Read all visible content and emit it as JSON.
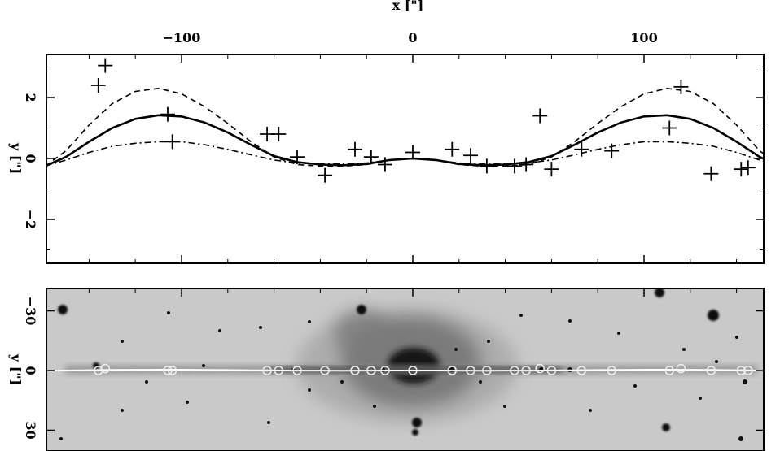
{
  "chart_data": [
    {
      "type": "line",
      "panel": "upper",
      "title": "",
      "xlabel": "x [\"]",
      "ylabel": "y [\"]",
      "x_label_position": "top",
      "xlim": [
        -150,
        150
      ],
      "ylim": [
        -3.5,
        3.5
      ],
      "x_ticks": [
        -100,
        0,
        100
      ],
      "x_tick_labels": [
        "−100",
        "0",
        "100"
      ],
      "y_ticks": [
        -2,
        0,
        2
      ],
      "y_tick_labels": [
        "−2",
        "0",
        "2"
      ],
      "grid": false,
      "legend": "none",
      "series": [
        {
          "style": "solid",
          "x": [
            -159,
            -150,
            -140,
            -130,
            -120,
            -110,
            -100,
            -90,
            -80,
            -70,
            -60,
            -50,
            -40,
            -30,
            -20,
            -10,
            0,
            10,
            20,
            30,
            40,
            50,
            60,
            70,
            80,
            90,
            100,
            110,
            120,
            130,
            140,
            150,
            159
          ],
          "y": [
            -0.25,
            0.05,
            0.55,
            1.0,
            1.3,
            1.42,
            1.38,
            1.18,
            0.85,
            0.45,
            0.08,
            -0.12,
            -0.2,
            -0.22,
            -0.18,
            -0.05,
            0.0,
            -0.05,
            -0.18,
            -0.22,
            -0.2,
            -0.12,
            0.08,
            0.45,
            0.85,
            1.18,
            1.38,
            1.42,
            1.3,
            1.0,
            0.55,
            0.05,
            -0.25
          ]
        },
        {
          "style": "dashed",
          "x": [
            -159,
            -150,
            -140,
            -130,
            -120,
            -110,
            -100,
            -90,
            -80,
            -70,
            -60,
            -50,
            -40,
            -30,
            -20,
            -10,
            0,
            10,
            20,
            30,
            40,
            50,
            60,
            70,
            80,
            90,
            100,
            110,
            120,
            130,
            140,
            150,
            159
          ],
          "y": [
            -0.25,
            0.25,
            1.1,
            1.8,
            2.2,
            2.3,
            2.12,
            1.7,
            1.15,
            0.55,
            0.05,
            -0.2,
            -0.25,
            -0.25,
            -0.2,
            -0.05,
            0.0,
            -0.05,
            -0.2,
            -0.25,
            -0.25,
            -0.2,
            0.05,
            0.55,
            1.15,
            1.7,
            2.12,
            2.3,
            2.2,
            1.8,
            1.1,
            0.25,
            -0.25
          ]
        },
        {
          "style": "dash-dot",
          "x": [
            -159,
            -150,
            -140,
            -130,
            -120,
            -110,
            -100,
            -90,
            -80,
            -70,
            -60,
            -50,
            -40,
            -30,
            -20,
            -10,
            0,
            10,
            20,
            30,
            40,
            50,
            60,
            70,
            80,
            90,
            100,
            110,
            120,
            130,
            140,
            150,
            159
          ],
          "y": [
            -0.25,
            -0.05,
            0.2,
            0.4,
            0.5,
            0.55,
            0.55,
            0.45,
            0.3,
            0.12,
            -0.05,
            -0.15,
            -0.18,
            -0.18,
            -0.15,
            -0.05,
            0.0,
            -0.05,
            -0.15,
            -0.18,
            -0.18,
            -0.15,
            -0.05,
            0.12,
            0.3,
            0.45,
            0.55,
            0.55,
            0.5,
            0.4,
            0.2,
            -0.05,
            -0.25
          ]
        }
      ],
      "points": {
        "marker": "+",
        "x": [
          -136,
          -133,
          -106,
          -104,
          -63,
          -58,
          -50,
          -38,
          -25,
          -18,
          -12,
          0,
          17,
          25,
          32,
          44,
          49,
          55,
          60,
          73,
          86,
          111,
          116,
          129,
          142,
          145
        ],
        "y": [
          2.4,
          3.05,
          1.45,
          0.55,
          0.8,
          0.8,
          0.05,
          -0.55,
          0.3,
          0.05,
          -0.2,
          0.2,
          0.3,
          0.1,
          -0.25,
          -0.25,
          -0.2,
          1.4,
          -0.35,
          0.3,
          0.25,
          1.0,
          2.35,
          -0.5,
          -0.35,
          -0.3
        ]
      }
    },
    {
      "type": "image",
      "panel": "lower",
      "ylabel": "y [\"]",
      "ylim": [
        -60,
        45
      ],
      "y_ticks": [
        -30,
        0,
        30
      ],
      "y_tick_labels": [
        "−30",
        "0",
        "30"
      ],
      "circle_markers_x": [
        -136,
        -133,
        -106,
        -104,
        -63,
        -58,
        -50,
        -38,
        -25,
        -18,
        -12,
        0,
        17,
        25,
        32,
        44,
        49,
        55,
        60,
        73,
        86,
        111,
        116,
        129,
        142,
        145
      ],
      "circle_markers_y": [
        0,
        -1,
        0,
        0,
        0,
        0,
        0,
        0,
        0,
        0,
        0,
        0,
        0,
        0,
        0,
        0,
        0,
        -1,
        0,
        0,
        0,
        0,
        -1,
        0,
        0,
        0
      ],
      "colors": {
        "curve": "#ffffff",
        "markers": "#f0f0f0",
        "background": "#c9c9c9"
      }
    }
  ]
}
